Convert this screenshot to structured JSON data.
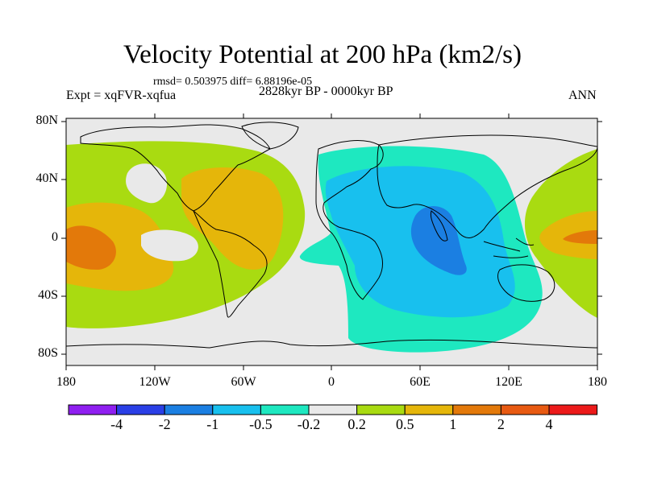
{
  "map": {
    "title": "Velocity Potential at 200 hPa (km2/s)",
    "subtitle": "rmsd= 0.503975 diff= 6.88196e-05",
    "left_label": "Expt = xqFVR-xqfua",
    "center_label": "2828kyr BP - 0000kyr BP",
    "right_label": "ANN",
    "lat_ticks": [
      "80N",
      "40N",
      "0",
      "40S",
      "80S"
    ],
    "lon_ticks": [
      "180",
      "120W",
      "60W",
      "0",
      "60E",
      "120E",
      "180"
    ]
  },
  "colorbar": {
    "labels": [
      "-4",
      "-2",
      "-1",
      "-0.5",
      "-0.2",
      "0.2",
      "0.5",
      "1",
      "2",
      "4"
    ],
    "colors": [
      "#8f1ff0",
      "#2a3fe6",
      "#1b7fe2",
      "#18c0ee",
      "#1ee8c0",
      "#e9e9e9",
      "#a9db11",
      "#e5b60a",
      "#e3790a",
      "#e85a12",
      "#ec1a1a"
    ]
  },
  "colors": {
    "land_outline": "#000000",
    "neutral": "#e9e9e9",
    "positive_1": "#a9db11",
    "positive_2": "#e5b60a",
    "positive_3": "#e3790a",
    "negative_1": "#1ee8c0",
    "negative_2": "#18c0ee",
    "negative_3": "#1b7fe2"
  }
}
